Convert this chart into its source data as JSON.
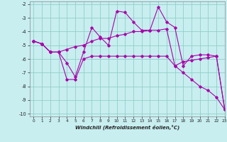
{
  "xlabel": "Windchill (Refroidissement éolien,°C)",
  "xlim": [
    -0.5,
    23
  ],
  "ylim": [
    -10.2,
    -1.8
  ],
  "yticks": [
    -10,
    -9,
    -8,
    -7,
    -6,
    -5,
    -4,
    -3,
    -2
  ],
  "xticks": [
    0,
    1,
    2,
    3,
    4,
    5,
    6,
    7,
    8,
    9,
    10,
    11,
    12,
    13,
    14,
    15,
    16,
    17,
    18,
    19,
    20,
    21,
    22,
    23
  ],
  "bg_color": "#c8eef0",
  "line_color": "#aa00aa",
  "grid_color": "#90d0c8",
  "line1_y": [
    -4.7,
    -4.9,
    -5.5,
    -5.5,
    -6.3,
    -7.3,
    -5.5,
    -3.7,
    -4.4,
    -5.0,
    -2.5,
    -2.6,
    -3.3,
    -3.9,
    -3.9,
    -2.2,
    -3.3,
    -3.7,
    -6.5,
    -5.8,
    -5.7,
    -5.7,
    -5.8,
    -9.7
  ],
  "line2_y": [
    -4.7,
    -4.9,
    -5.5,
    -5.5,
    -5.3,
    -5.1,
    -5.0,
    -4.7,
    -4.5,
    -4.5,
    -4.3,
    -4.2,
    -4.0,
    -4.0,
    -3.9,
    -3.9,
    -3.8,
    -6.5,
    -6.2,
    -6.1,
    -6.0,
    -5.9,
    -5.8,
    -9.7
  ],
  "line3_y": [
    -4.7,
    -4.9,
    -5.5,
    -5.5,
    -7.5,
    -7.5,
    -6.0,
    -5.8,
    -5.8,
    -5.8,
    -5.8,
    -5.8,
    -5.8,
    -5.8,
    -5.8,
    -5.8,
    -5.8,
    -6.5,
    -7.0,
    -7.5,
    -8.0,
    -8.3,
    -8.8,
    -9.7
  ]
}
